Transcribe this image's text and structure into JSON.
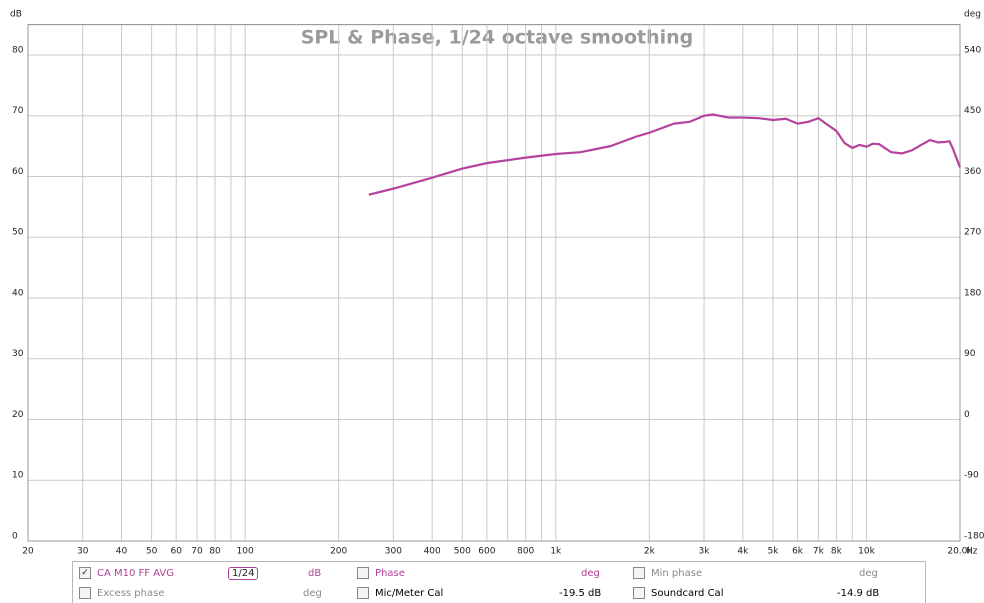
{
  "chart_data": {
    "type": "line",
    "title": "SPL & Phase, 1/24 octave smoothing",
    "y_label": "dB",
    "y2_label": "deg",
    "x_unit": "Hz",
    "x_scale": "log",
    "grid": true,
    "xlim": [
      20,
      20000
    ],
    "ylim": [
      0,
      85
    ],
    "y2lim": [
      -180,
      585
    ],
    "xticks": [
      20,
      30,
      40,
      50,
      60,
      70,
      80,
      100,
      200,
      300,
      400,
      500,
      600,
      800,
      {
        "value": 1000,
        "label": "1k"
      },
      {
        "value": 2000,
        "label": "2k"
      },
      {
        "value": 3000,
        "label": "3k"
      },
      {
        "value": 4000,
        "label": "4k"
      },
      {
        "value": 5000,
        "label": "5k"
      },
      {
        "value": 6000,
        "label": "6k"
      },
      {
        "value": 7000,
        "label": "7k"
      },
      {
        "value": 8000,
        "label": "8k"
      },
      {
        "value": 10000,
        "label": "10k"
      },
      {
        "value": 20000,
        "label": "20.0k"
      }
    ],
    "xminor_ticks": [
      90,
      700,
      900,
      9000
    ],
    "yticks": [
      0,
      10,
      20,
      30,
      40,
      50,
      60,
      70,
      80
    ],
    "y2ticks": [
      -180,
      -90,
      0,
      90,
      180,
      270,
      360,
      450,
      540
    ],
    "x": [
      250,
      300,
      400,
      500,
      600,
      800,
      1000,
      1200,
      1500,
      1800,
      2000,
      2400,
      2700,
      3000,
      3200,
      3600,
      4000,
      4500,
      5000,
      5500,
      6000,
      6500,
      7000,
      7500,
      8000,
      8500,
      9000,
      9500,
      10000,
      10500,
      11000,
      12000,
      13000,
      14000,
      15000,
      16000,
      17000,
      18000,
      18500,
      19000,
      20000
    ],
    "series": [
      {
        "name": "CA M10 FF AVG",
        "color": "#b5429f",
        "values": [
          57.0,
          58.0,
          59.8,
          61.3,
          62.2,
          63.1,
          63.7,
          64.0,
          65.0,
          66.5,
          67.2,
          68.7,
          69.0,
          70.0,
          70.2,
          69.7,
          69.7,
          69.6,
          69.3,
          69.5,
          68.7,
          69.0,
          69.6,
          68.5,
          67.5,
          65.5,
          64.7,
          65.2,
          64.9,
          65.4,
          65.3,
          64.0,
          63.8,
          64.3,
          65.2,
          66.0,
          65.6,
          65.7,
          65.8,
          64.5,
          61.5
        ]
      }
    ]
  },
  "legend_panel": {
    "rows": [
      [
        {
          "label": "CA M10 FF AVG",
          "smoothing": "1/24",
          "unit": "dB"
        },
        {
          "label": "Phase",
          "unit": "deg"
        },
        {
          "label": "Min phase",
          "unit": "deg"
        }
      ],
      [
        {
          "label": "Excess phase",
          "unit": "deg"
        },
        {
          "label": "Mic/Meter Cal",
          "unit": "-19.5 dB"
        },
        {
          "label": "Soundcard Cal",
          "unit": "-14.9 dB"
        }
      ]
    ]
  }
}
